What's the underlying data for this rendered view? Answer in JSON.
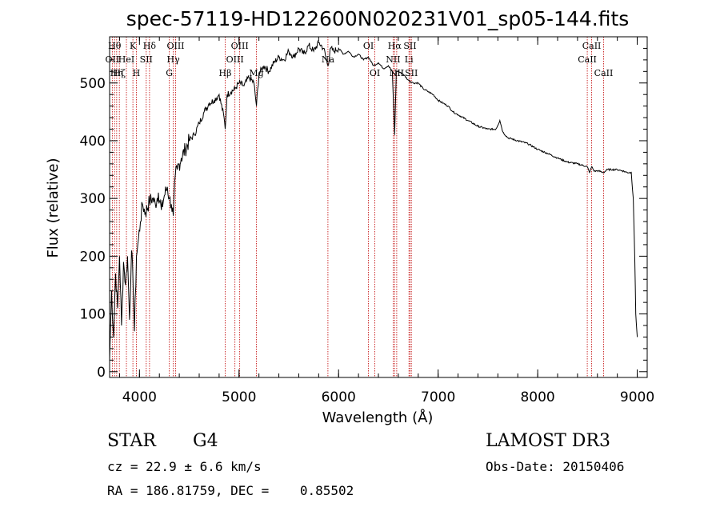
{
  "chart_data": {
    "type": "line",
    "title": "spec-57119-HD122600N020231V01_sp05-144.fits",
    "xlabel": "Wavelength (Å)",
    "ylabel": "Flux (relative)",
    "xlim": [
      3700,
      9100
    ],
    "ylim": [
      -10,
      580
    ],
    "xticks": [
      4000,
      5000,
      6000,
      7000,
      8000,
      9000
    ],
    "yticks": [
      0,
      100,
      200,
      300,
      400,
      500
    ],
    "series": [
      {
        "name": "flux",
        "x": [
          3700,
          3720,
          3740,
          3760,
          3780,
          3800,
          3820,
          3840,
          3860,
          3880,
          3900,
          3920,
          3935,
          3950,
          3970,
          3990,
          4010,
          4030,
          4060,
          4101,
          4130,
          4160,
          4190,
          4220,
          4250,
          4280,
          4300,
          4320,
          4340,
          4360,
          4380,
          4420,
          4460,
          4500,
          4550,
          4600,
          4650,
          4700,
          4750,
          4800,
          4850,
          4861,
          4880,
          4920,
          4960,
          5000,
          5050,
          5100,
          5150,
          5175,
          5200,
          5250,
          5300,
          5350,
          5400,
          5450,
          5500,
          5550,
          5600,
          5650,
          5700,
          5750,
          5800,
          5850,
          5893,
          5920,
          5950,
          6000,
          6050,
          6100,
          6150,
          6200,
          6250,
          6300,
          6350,
          6400,
          6450,
          6500,
          6540,
          6563,
          6580,
          6600,
          6650,
          6700,
          6750,
          6800,
          6850,
          6900,
          6950,
          7000,
          7050,
          7100,
          7150,
          7200,
          7300,
          7400,
          7500,
          7580,
          7620,
          7650,
          7700,
          7800,
          7900,
          8000,
          8100,
          8200,
          8300,
          8400,
          8498,
          8520,
          8542,
          8570,
          8600,
          8662,
          8700,
          8750,
          8800,
          8850,
          8900,
          8940,
          8960,
          8975,
          8985,
          9000
        ],
        "values": [
          20,
          140,
          60,
          170,
          110,
          200,
          80,
          190,
          150,
          200,
          90,
          210,
          160,
          70,
          200,
          230,
          260,
          290,
          275,
          295,
          300,
          290,
          310,
          280,
          305,
          320,
          300,
          290,
          270,
          340,
          350,
          370,
          385,
          400,
          410,
          430,
          450,
          465,
          470,
          480,
          440,
          420,
          480,
          485,
          490,
          500,
          495,
          510,
          500,
          460,
          515,
          530,
          520,
          535,
          545,
          540,
          555,
          545,
          560,
          550,
          565,
          555,
          570,
          560,
          530,
          560,
          555,
          560,
          550,
          555,
          545,
          550,
          540,
          545,
          530,
          535,
          525,
          530,
          520,
          410,
          520,
          520,
          515,
          505,
          500,
          500,
          490,
          485,
          480,
          470,
          465,
          460,
          450,
          445,
          435,
          425,
          420,
          420,
          435,
          415,
          405,
          400,
          395,
          385,
          378,
          370,
          363,
          360,
          355,
          345,
          355,
          347,
          348,
          345,
          350,
          350,
          350,
          348,
          345,
          345,
          300,
          200,
          100,
          60
        ]
      }
    ],
    "lines": [
      {
        "x": 3727,
        "label": "OII",
        "row": 1
      },
      {
        "x": 3750,
        "label": "Hθ",
        "row": 0
      },
      {
        "x": 3771,
        "label": "Hη",
        "row": 2
      },
      {
        "x": 3798,
        "label": "Hζ",
        "row": 2
      },
      {
        "x": 3869,
        "label": "HeI",
        "row": 1
      },
      {
        "x": 3934,
        "label": "K",
        "row": 0
      },
      {
        "x": 3969,
        "label": "H",
        "row": 2
      },
      {
        "x": 4068,
        "label": "SII",
        "row": 1
      },
      {
        "x": 4101,
        "label": "Hδ",
        "row": 0
      },
      {
        "x": 4300,
        "label": "G",
        "row": 2
      },
      {
        "x": 4340,
        "label": "Hγ",
        "row": 1
      },
      {
        "x": 4363,
        "label": "OIII",
        "row": 0
      },
      {
        "x": 4861,
        "label": "Hβ",
        "row": 2
      },
      {
        "x": 4959,
        "label": "OIII",
        "row": 1
      },
      {
        "x": 5007,
        "label": "OIII",
        "row": 0
      },
      {
        "x": 5175,
        "label": "Mg",
        "row": 2
      },
      {
        "x": 5893,
        "label": "Na",
        "row": 1
      },
      {
        "x": 6300,
        "label": "OI",
        "row": 0
      },
      {
        "x": 6364,
        "label": "OI",
        "row": 2
      },
      {
        "x": 6548,
        "label": "NII",
        "row": 1
      },
      {
        "x": 6563,
        "label": "Hα",
        "row": 0
      },
      {
        "x": 6584,
        "label": "NII",
        "row": 2
      },
      {
        "x": 6707,
        "label": "Li",
        "row": 1
      },
      {
        "x": 6717,
        "label": "SII",
        "row": 0
      },
      {
        "x": 6731,
        "label": "SII",
        "row": 2
      },
      {
        "x": 8498,
        "label": "CaII",
        "row": 1
      },
      {
        "x": 8542,
        "label": "CaII",
        "row": 0
      },
      {
        "x": 8662,
        "label": "CaII",
        "row": 2
      }
    ]
  },
  "info": {
    "class_label": "STAR",
    "subclass": "G4",
    "survey": "LAMOST DR3",
    "redshift": "cz = 22.9 ± 6.6 km/s",
    "obs_date": "Obs-Date: 20150406",
    "coords": "RA = 186.81759, DEC =    0.85502"
  },
  "colors": {
    "line_marker": "#c00000",
    "spectrum": "#000000"
  }
}
